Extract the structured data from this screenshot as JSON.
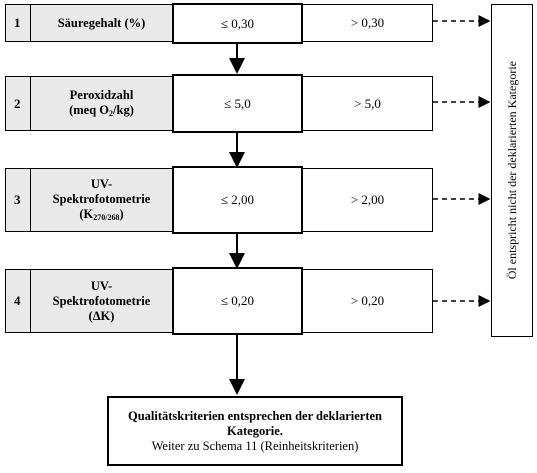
{
  "rows": [
    {
      "num": "1",
      "label_lines": [
        "Säuregehalt (%)"
      ],
      "le": "≤ 0,30",
      "gt": "> 0,30"
    },
    {
      "num": "2",
      "label_lines": [
        "Peroxidzahl"
      ],
      "label_pre": "(meq O",
      "label_sub": "2",
      "label_post": "/kg)",
      "le": "≤ 5,0",
      "gt": "> 5,0"
    },
    {
      "num": "3",
      "label_lines": [
        "UV-",
        "Spektrofotometrie"
      ],
      "label_pre": "(K",
      "label_sub": "270/268",
      "label_post": ")",
      "le": "≤ 2,00",
      "gt": "> 2,00"
    },
    {
      "num": "4",
      "label_lines": [
        "UV-",
        "Spektrofotometrie",
        "(ΔK)"
      ],
      "le": "≤ 0,20",
      "gt": "> 0,20"
    }
  ],
  "side_text": "Öl entspricht nicht der deklarierten Kategorie",
  "final": {
    "line1": "Qualitätskriterien entsprechen der deklarierten",
    "line2": "Kategorie.",
    "line3": "Weiter zu Schema 11 (Reinheitskriterien)"
  }
}
